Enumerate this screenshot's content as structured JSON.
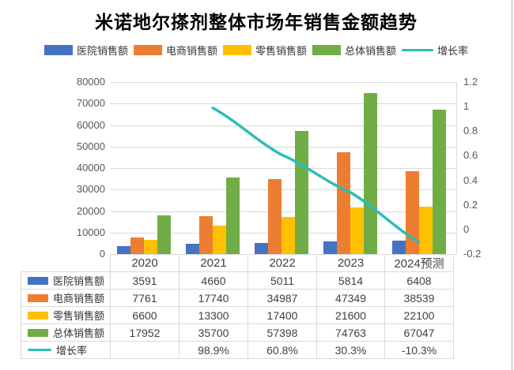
{
  "title": "米诺地尔搽剂整体市场年销售金额趋势",
  "chart_data": {
    "type": "bar",
    "title": "米诺地尔搽剂整体市场年销售金额趋势",
    "categories": [
      "2020",
      "2021",
      "2022",
      "2023",
      "2024预测"
    ],
    "series": [
      {
        "name": "医院销售额",
        "type": "bar",
        "axis": "left",
        "color": "#4472C4",
        "values": [
          3591,
          4660,
          5011,
          5814,
          6408
        ],
        "display": [
          "3591",
          "4660",
          "5011",
          "5814",
          "6408"
        ]
      },
      {
        "name": "电商销售额",
        "type": "bar",
        "axis": "left",
        "color": "#ED7D31",
        "values": [
          7761,
          17740,
          34987,
          47349,
          38539
        ],
        "display": [
          "7761",
          "17740",
          "34987",
          "47349",
          "38539"
        ]
      },
      {
        "name": "零售销售额",
        "type": "bar",
        "axis": "left",
        "color": "#FFC000",
        "values": [
          6600,
          13300,
          17400,
          21600,
          22100
        ],
        "display": [
          "6600",
          "13300",
          "17400",
          "21600",
          "22100"
        ]
      },
      {
        "name": "总体销售额",
        "type": "bar",
        "axis": "left",
        "color": "#70AD47",
        "values": [
          17952,
          35700,
          57398,
          74763,
          67047
        ],
        "display": [
          "17952",
          "35700",
          "57398",
          "74763",
          "67047"
        ]
      },
      {
        "name": "增长率",
        "type": "line",
        "axis": "right",
        "color": "#2BBEB4",
        "values": [
          null,
          0.989,
          0.608,
          0.303,
          -0.103
        ],
        "display": [
          "",
          "98.9%",
          "60.8%",
          "30.3%",
          "-10.3%"
        ]
      }
    ],
    "left_axis": {
      "min": 0,
      "max": 80000,
      "step": 10000,
      "tick_labels": [
        "0",
        "10000",
        "20000",
        "30000",
        "40000",
        "50000",
        "60000",
        "70000",
        "80000"
      ]
    },
    "right_axis": {
      "min": -0.2,
      "max": 1.2,
      "step": 0.2,
      "tick_labels": [
        "-0.2",
        "0",
        "0.2",
        "0.4",
        "0.6",
        "0.8",
        "1",
        "1.2"
      ]
    },
    "legend_position": "top",
    "grid": true,
    "data_table": true
  },
  "colors": {
    "background": "#FFFFFF",
    "grid_line": "#D9D9D9",
    "axis_text": "#595959",
    "table_border": "#D9D9D9",
    "table_text": "#3F3F3F",
    "title_text": "#000000"
  }
}
